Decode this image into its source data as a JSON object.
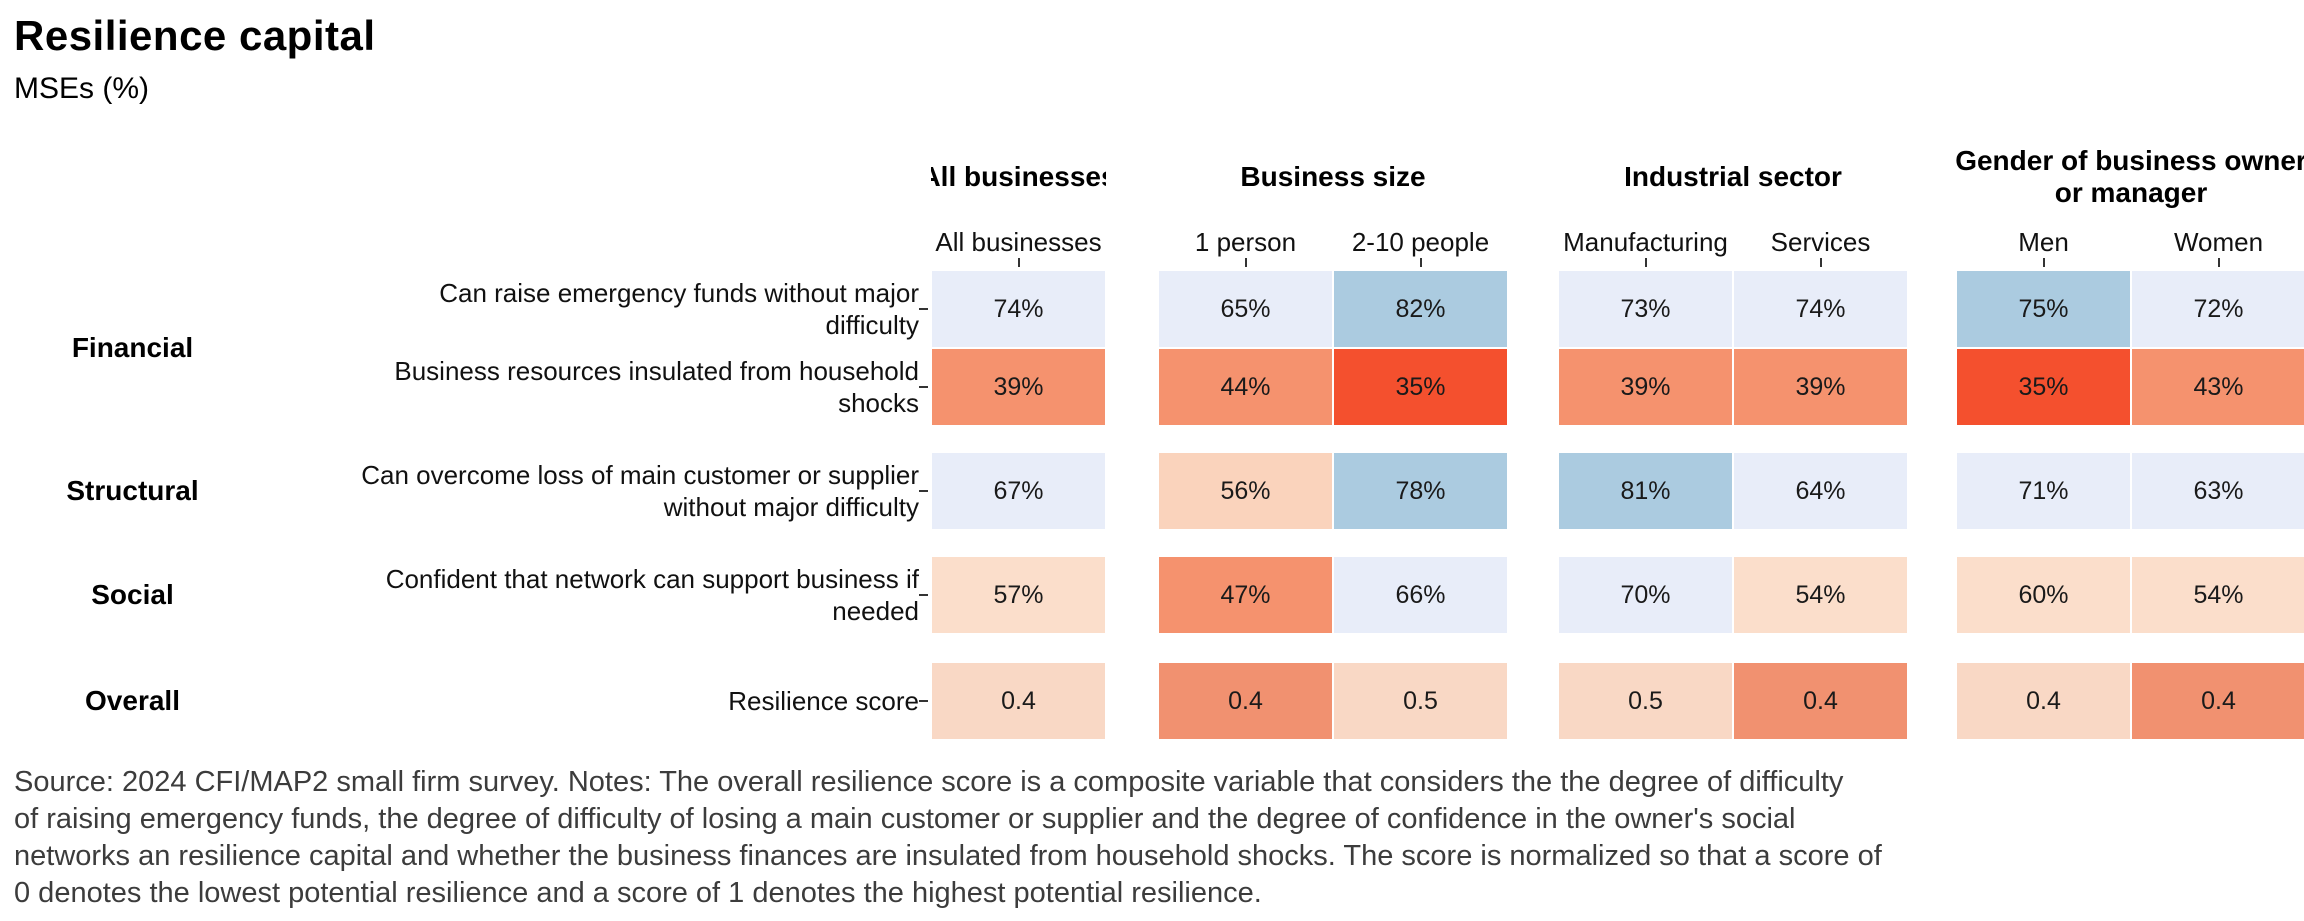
{
  "title": "Resilience capital",
  "subtitle": "MSEs (%)",
  "chart_data": {
    "type": "heatmap",
    "value_unit": "percent (last row: score 0-1)",
    "palette": {
      "strong_blue": "#ABCBE0",
      "lavender": "#E8EDF9",
      "peach": "#FAD3BC",
      "peach_light": "#FBDECB",
      "peach_pale": "#F9D8C5",
      "salmon": "#F5926E",
      "salmon_soft": "#F19170",
      "red": "#F4502E"
    },
    "column_groups": [
      {
        "label": "All businesses",
        "label_lines": [
          "All businesses"
        ],
        "columns": [
          "All businesses"
        ]
      },
      {
        "label": "Business size",
        "label_lines": [
          "Business size"
        ],
        "columns": [
          "1 person",
          "2-10 people"
        ]
      },
      {
        "label": "Industrial sector",
        "label_lines": [
          "Industrial sector"
        ],
        "columns": [
          "Manufacturing",
          "Services"
        ]
      },
      {
        "label": "Gender of business owner or manager",
        "label_lines": [
          "Gender of business owner",
          "or manager"
        ],
        "columns": [
          "Men",
          "Women"
        ]
      }
    ],
    "row_groups": [
      {
        "group": "Financial",
        "rows": [
          {
            "label": "Can raise emergency funds without major difficulty",
            "label_lines": [
              "Can raise emergency funds without major",
              "difficulty"
            ],
            "values": [
              "74%",
              "65%",
              "82%",
              "73%",
              "74%",
              "75%",
              "72%"
            ],
            "colors": [
              "#E8EDF9",
              "#E8EDF9",
              "#ABCBE0",
              "#E8EDF9",
              "#E8EDF9",
              "#ABCBE0",
              "#E8EDF9"
            ]
          },
          {
            "label": "Business resources insulated from household shocks",
            "label_lines": [
              "Business resources insulated from household",
              "shocks"
            ],
            "values": [
              "39%",
              "44%",
              "35%",
              "39%",
              "39%",
              "35%",
              "43%"
            ],
            "colors": [
              "#F5926E",
              "#F5926E",
              "#F4502E",
              "#F5926E",
              "#F5926E",
              "#F4502E",
              "#F5926E"
            ]
          }
        ]
      },
      {
        "group": "Structural",
        "rows": [
          {
            "label": "Can overcome loss of main customer or supplier without major difficulty",
            "label_lines": [
              "Can overcome loss of main customer or supplier",
              "without major difficulty"
            ],
            "values": [
              "67%",
              "56%",
              "78%",
              "81%",
              "64%",
              "71%",
              "63%"
            ],
            "colors": [
              "#E8EDF9",
              "#FAD3BC",
              "#ABCBE0",
              "#ABCBE0",
              "#E8EDF9",
              "#E8EDF9",
              "#E8EDF9"
            ]
          }
        ]
      },
      {
        "group": "Social",
        "rows": [
          {
            "label": "Confident that network can support business if needed",
            "label_lines": [
              "Confident that network can support business if",
              "needed"
            ],
            "values": [
              "57%",
              "47%",
              "66%",
              "70%",
              "54%",
              "60%",
              "54%"
            ],
            "colors": [
              "#FBDECB",
              "#F5926E",
              "#E8EDF9",
              "#E8EDF9",
              "#FBDECB",
              "#FBDECB",
              "#FBDECB"
            ]
          }
        ]
      },
      {
        "group": "Overall",
        "rows": [
          {
            "label": "Resilience score",
            "label_lines": [
              "Resilience score"
            ],
            "values": [
              "0.4",
              "0.4",
              "0.5",
              "0.5",
              "0.4",
              "0.4",
              "0.4"
            ],
            "colors": [
              "#F9D8C5",
              "#F19170",
              "#F9D8C5",
              "#F9D8C5",
              "#F19170",
              "#F9D8C5",
              "#F19170"
            ]
          }
        ]
      }
    ]
  },
  "footnote_lines": [
    "Source: 2024 CFI/MAP2 small firm survey. Notes: The overall resilience score is a composite variable that considers the the degree of difficulty",
    "of raising emergency funds, the degree of difficulty of losing a main customer or supplier and the degree of confidence in the owner's social",
    "networks an resilience capital and whether the business finances are insulated from household shocks. The score is normalized so that a score of",
    "0 denotes the lowest potential resilience and a score of 1 denotes the highest potential resilience."
  ]
}
